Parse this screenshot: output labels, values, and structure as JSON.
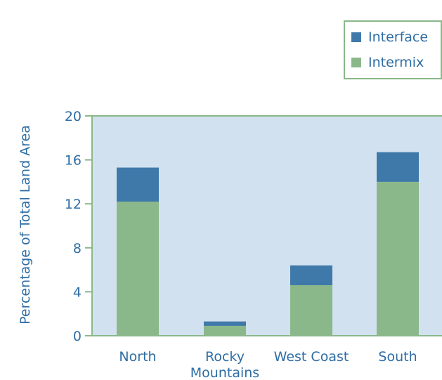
{
  "chart_data": {
    "type": "bar",
    "stacked": true,
    "categories": [
      "North",
      "Rocky\nMountains",
      "West Coast",
      "South"
    ],
    "series": [
      {
        "name": "Intermix",
        "color": "#8ab88a",
        "values": [
          12.2,
          0.9,
          4.6,
          14.0
        ]
      },
      {
        "name": "Interface",
        "color": "#3f79a9",
        "values": [
          3.1,
          0.4,
          1.8,
          2.7
        ]
      }
    ],
    "legend_order": [
      "Interface",
      "Intermix"
    ],
    "legend_position": "top-right",
    "ylabel": "Percentage of Total Land Area",
    "xlabel": "",
    "ylim": [
      0,
      20
    ],
    "yticks": [
      0,
      4,
      8,
      12,
      16,
      20
    ],
    "plot_background": "#d2e1ef",
    "axis_color": "#8ab88a",
    "grid": false
  }
}
